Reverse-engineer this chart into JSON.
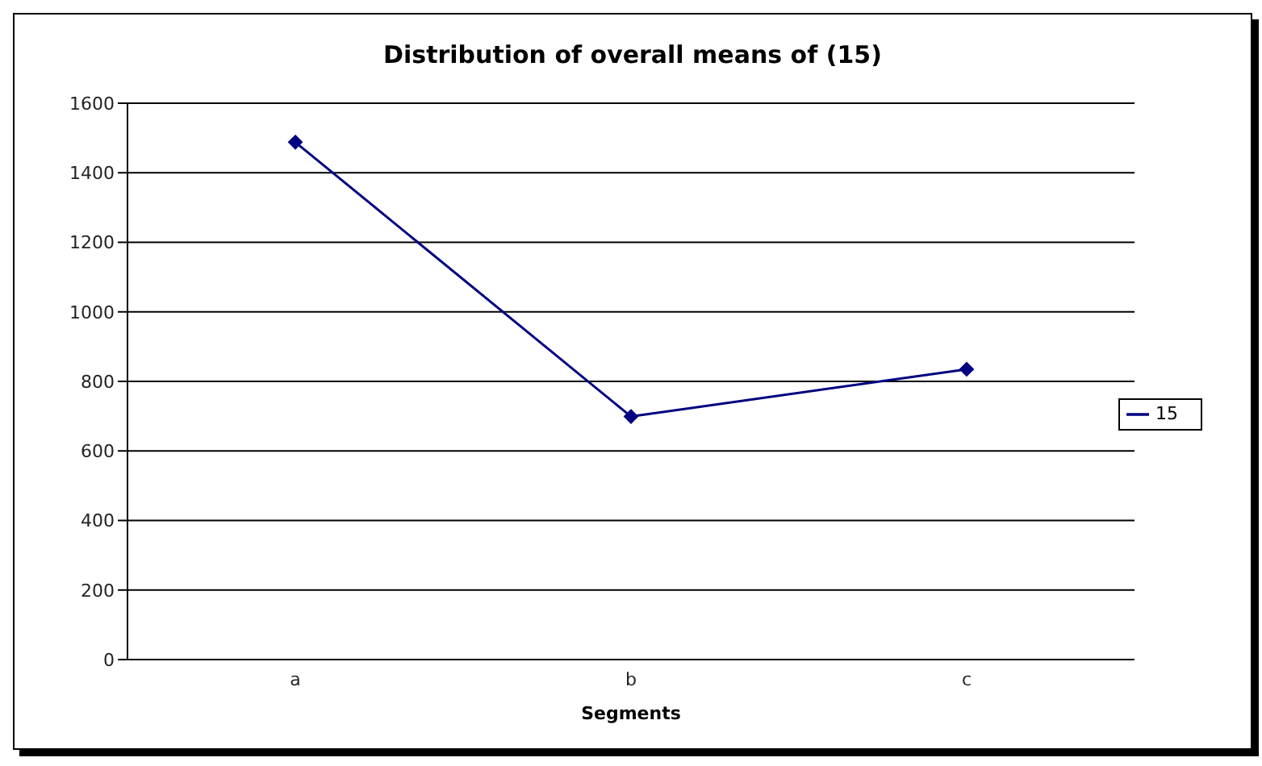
{
  "chart_data": {
    "type": "line",
    "title": "Distribution of overall means of (15)",
    "xlabel": "Segments",
    "categories": [
      "a",
      "b",
      "c"
    ],
    "series": [
      {
        "name": "15",
        "color": "#000080",
        "values": [
          1488,
          699,
          835
        ]
      }
    ],
    "ylim": [
      0,
      1600
    ],
    "yticks": [
      0,
      200,
      400,
      600,
      800,
      1000,
      1200,
      1400,
      1600
    ],
    "grid": "y",
    "legend": "right",
    "marker": "diamond",
    "line_style": "solid"
  }
}
